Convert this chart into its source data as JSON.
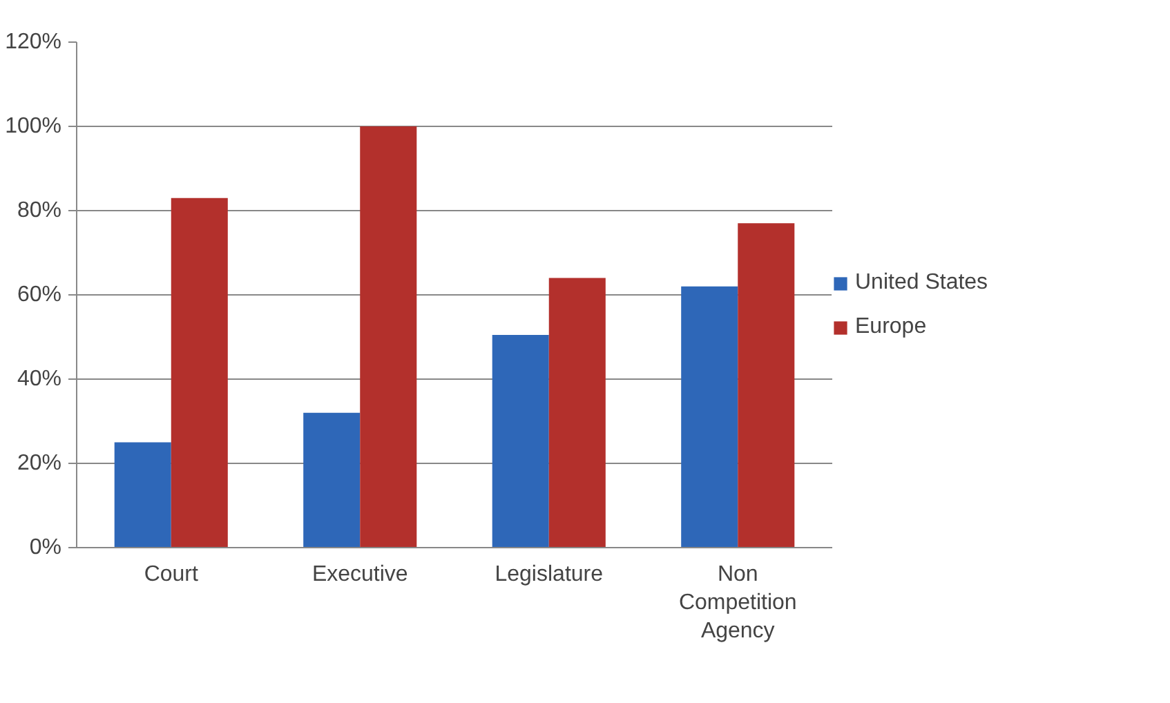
{
  "chart_data": {
    "type": "bar",
    "categories": [
      "Court",
      "Executive",
      "Legislature",
      "Non Competition Agency"
    ],
    "series": [
      {
        "name": "United States",
        "color": "#2e67b8",
        "values": [
          25,
          32,
          50.5,
          62
        ]
      },
      {
        "name": "Europe",
        "color": "#b3302c",
        "values": [
          83,
          100,
          64,
          77
        ]
      }
    ],
    "ylim": [
      0,
      120
    ],
    "yticks": [
      {
        "value": 0,
        "label": "0%"
      },
      {
        "value": 20,
        "label": "20%"
      },
      {
        "value": 40,
        "label": "40%"
      },
      {
        "value": 60,
        "label": "60%"
      },
      {
        "value": 80,
        "label": "80%"
      },
      {
        "value": 100,
        "label": "100%"
      },
      {
        "value": 120,
        "label": "120%"
      }
    ],
    "grid": "y",
    "legend": "right"
  }
}
